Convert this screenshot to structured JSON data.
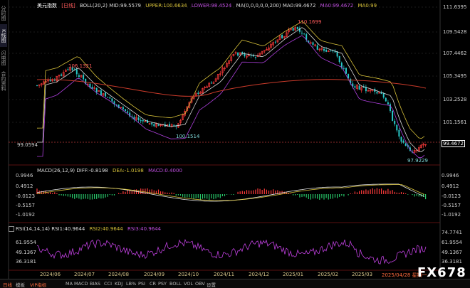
{
  "vertical_tabs": [
    "分时图",
    "K线图",
    "闪电图",
    "合约资料"
  ],
  "legend_main": {
    "symbol": "美元指数",
    "period": "[日线]",
    "boll": "BOLL(20,2) MID:99.5579",
    "upper": "UPPER:100.6634",
    "lower": "LOWER:98.4524",
    "ma": "MA(0,0,0,0,0,200) MA0:99.4672",
    "ma0": "MA0:99.4672",
    "ma0b": "MA0:99"
  },
  "legend_macd": {
    "name": "MACD(26,12,9) DIFF:-0.8198",
    "dea": "DEA:-1.0198",
    "macd": "MACD:0.4000"
  },
  "legend_rsi": {
    "name": "RSI(14,14,14) RSI1:40.9644",
    "rsi2": "RSI2:40.9644",
    "rsi3": "RSI3:40.9644"
  },
  "price_axis": [
    "111.6395",
    "109.5428",
    "107.4462",
    "105.3495",
    "103.2528",
    "101.1561",
    "99.0594"
  ],
  "current_price": "99.4672",
  "macd_axis": [
    "0.9946",
    "0.4912",
    "-0.0123",
    "-0.5157",
    "-1.0192"
  ],
  "rsi_axis": [
    "74.7741",
    "61.9554",
    "49.1367",
    "36.3181"
  ],
  "annotations": {
    "high": "110.1699",
    "mid_high": "106.1321",
    "low1": "100.1514",
    "low2": "97.9229"
  },
  "time_axis": [
    "2024/06",
    "2024/07",
    "2024/08",
    "2024/09",
    "2024/10",
    "2024/11",
    "2024/12",
    "2025/01",
    "2025/02",
    "2025/03"
  ],
  "cursor_date": "2025/04/28 星期一",
  "watermark": "FX678",
  "bottom_tabs": [
    "日线",
    "模板",
    "VIP指标",
    "MA",
    "MACD",
    "BIAS",
    "CCI",
    "KDJ",
    "LB%",
    "PSI",
    "CR",
    "PSY",
    "BOLL",
    "VOL",
    "OBV",
    "设置"
  ],
  "colors": {
    "up": "#ff3b3b",
    "down": "#27c9c9",
    "boll_upper": "#d8c23a",
    "boll_lower": "#b040e0",
    "ma200": "#c83a2a",
    "mid": "#d8d8d8",
    "rsi": "#c040e0"
  }
}
